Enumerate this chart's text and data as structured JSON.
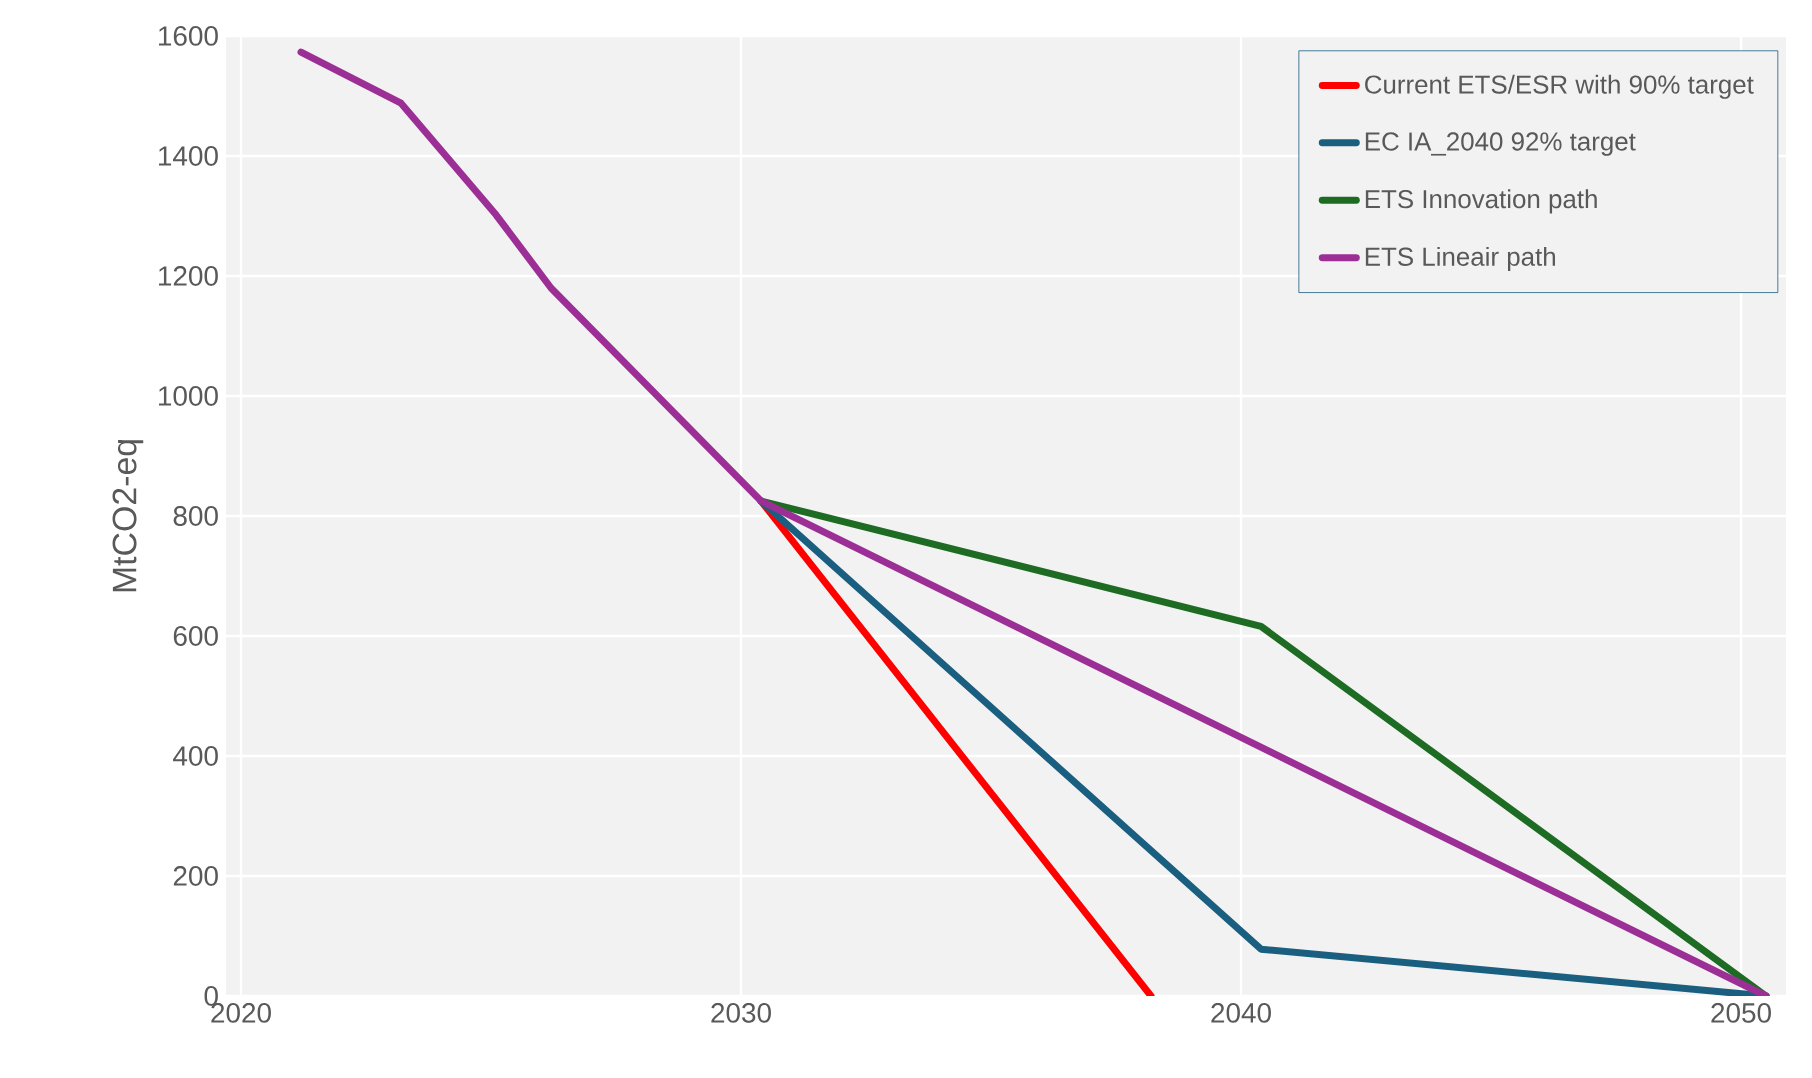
{
  "chart_data": {
    "type": "line",
    "ylabel": "MtCO2-eq",
    "xlim": [
      2019.7,
      2050.9
    ],
    "ylim": [
      0,
      1600
    ],
    "xticks": [
      2020,
      2030,
      2040,
      2050
    ],
    "yticks": [
      0,
      200,
      400,
      600,
      800,
      1000,
      1200,
      1400,
      1600
    ],
    "grid": true,
    "legend": "top right",
    "series": [
      {
        "name": "Current ETS/ESR with 90% target",
        "color": "#ff0000",
        "x": [
          2030.4,
          2038.2
        ],
        "values": [
          825,
          0
        ]
      },
      {
        "name": "EC IA_2040 92% target",
        "color": "#1a5e80",
        "x": [
          2030.4,
          2040.4,
          2050.5
        ],
        "values": [
          825,
          78,
          0
        ]
      },
      {
        "name": "ETS Innovation path",
        "color": "#1e6b23",
        "x": [
          2030.4,
          2040.4,
          2050.5
        ],
        "values": [
          825,
          616,
          0
        ]
      },
      {
        "name": "ETS Lineair path",
        "color": "#9c2f96",
        "x": [
          2021.2,
          2023.2,
          2025.1,
          2026.2,
          2030.4,
          2050.5
        ],
        "values": [
          1573,
          1488,
          1302,
          1180,
          825,
          0
        ]
      }
    ]
  }
}
